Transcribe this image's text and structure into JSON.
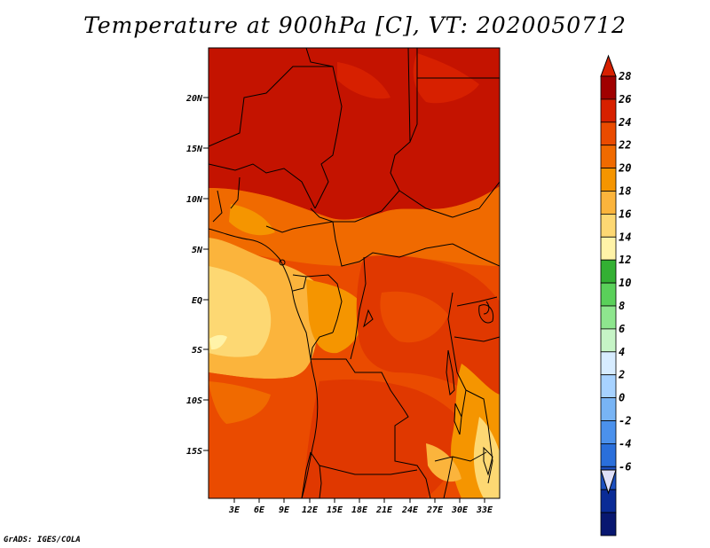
{
  "title": "Temperature at 900hPa [C], VT: 2020050712",
  "credit": "GrADS: IGES/COLA",
  "map": {
    "lat_labels": [
      "20N",
      "15N",
      "10N",
      "5N",
      "EQ",
      "5S",
      "10S",
      "15S"
    ],
    "lon_labels": [
      "3E",
      "6E",
      "9E",
      "12E",
      "15E",
      "18E",
      "21E",
      "24E",
      "27E",
      "30E",
      "33E"
    ]
  },
  "colorbar": {
    "labels": [
      "28",
      "26",
      "24",
      "22",
      "20",
      "18",
      "16",
      "14",
      "12",
      "10",
      "8",
      "6",
      "4",
      "2",
      "0",
      "-2",
      "-4",
      "-6"
    ],
    "colors": [
      "#a00000",
      "#d72000",
      "#ea4b00",
      "#f06a00",
      "#f59500",
      "#fbb43c",
      "#fdd873",
      "#fff3a8",
      "#33b033",
      "#5ad05a",
      "#8ee68e",
      "#c6f4c6",
      "#d7ecff",
      "#a7d2ff",
      "#78b4f5",
      "#4b91ec",
      "#2a6fdb",
      "#1c4fc0",
      "#0a2b96",
      "#081770"
    ],
    "top_color": "#d72000",
    "bottom_color": "#dfe0f8"
  }
}
